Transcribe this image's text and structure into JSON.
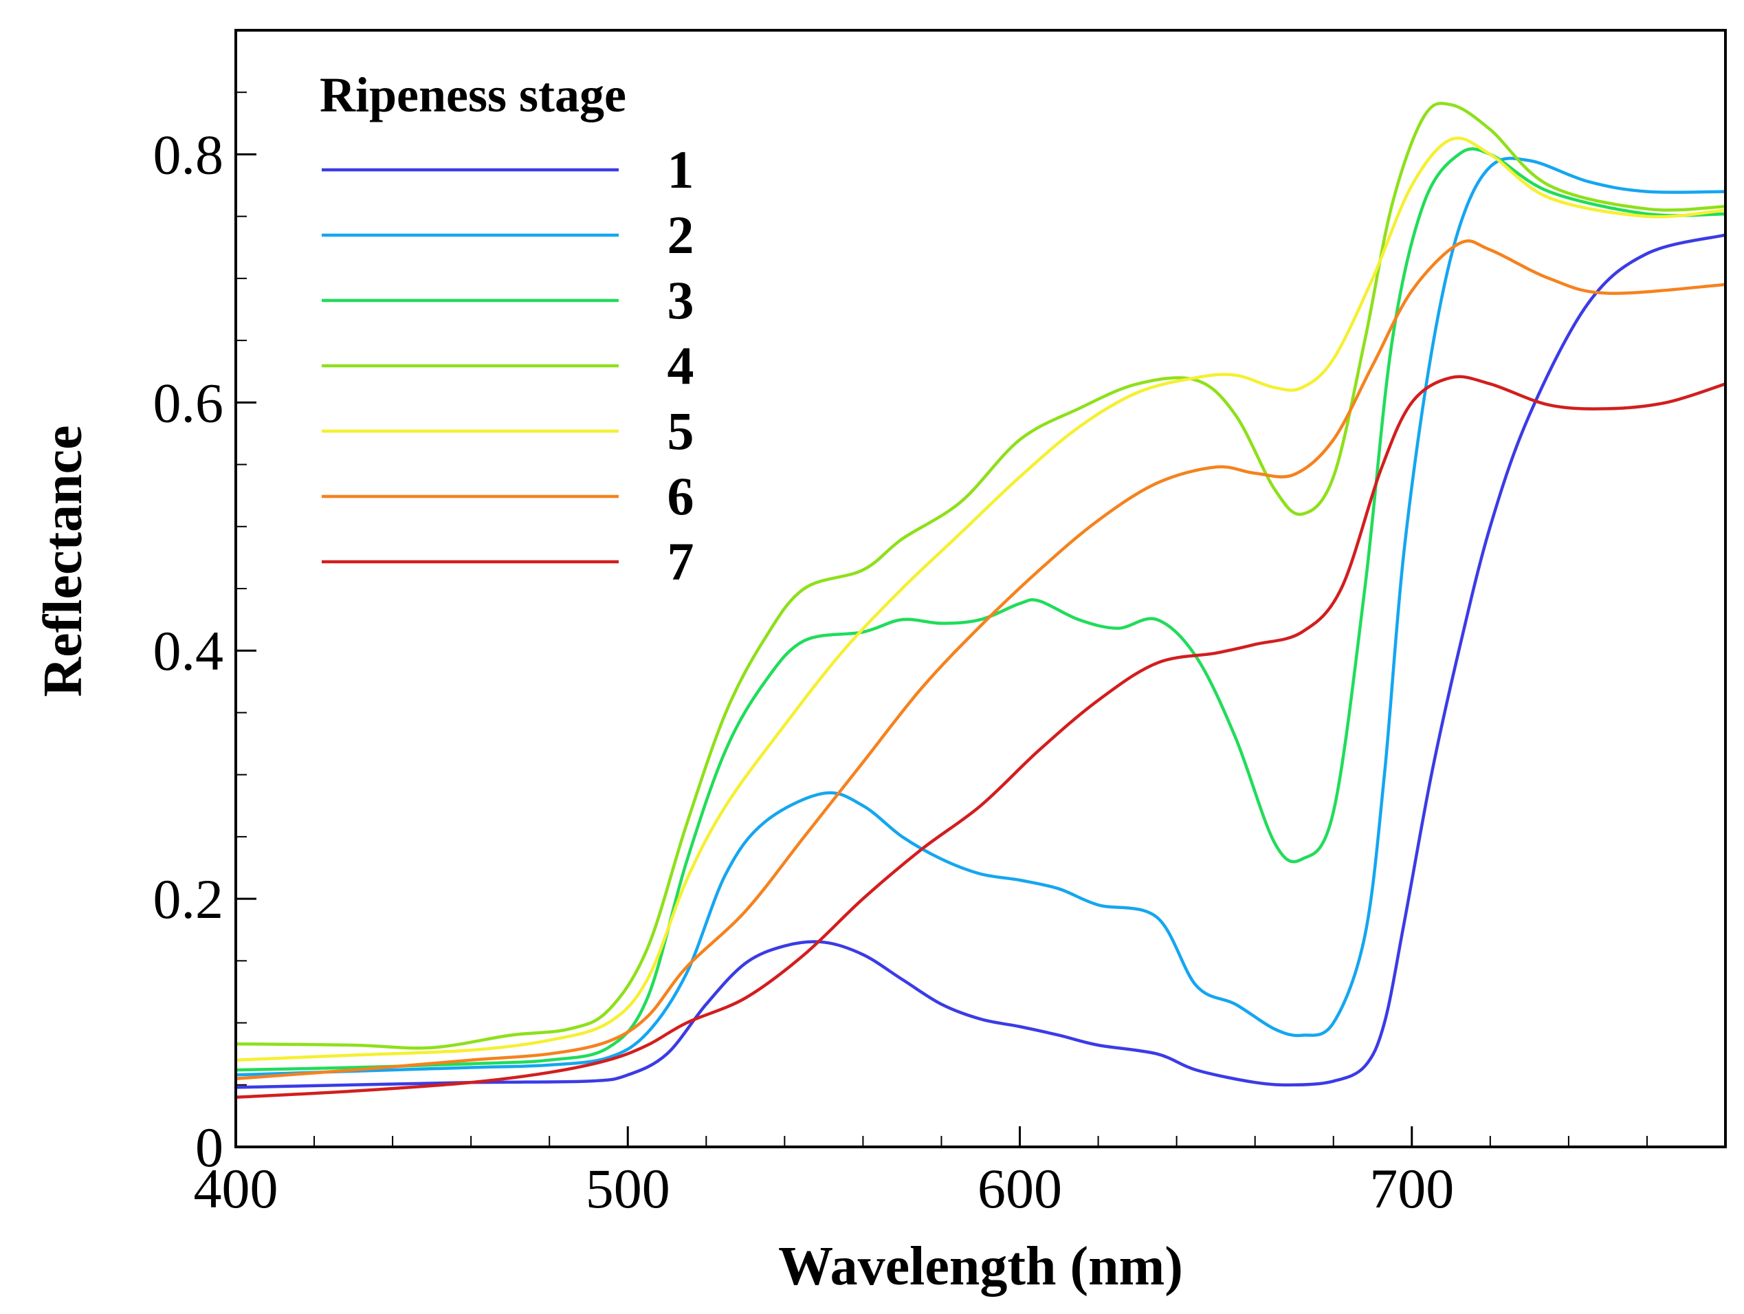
{
  "chart_data": {
    "type": "line",
    "title": "",
    "xlabel": "Wavelength (nm)",
    "ylabel": "Reflectance",
    "xlim": [
      400,
      780
    ],
    "ylim": [
      0,
      0.9
    ],
    "x_ticks": [
      400,
      500,
      600,
      700
    ],
    "x_tick_labels": [
      "400",
      "500",
      "600",
      "700"
    ],
    "x_minor_step": 20,
    "y_ticks": [
      0,
      0.2,
      0.4,
      0.6,
      0.8
    ],
    "y_tick_labels": [
      "0",
      "0.2",
      "0.4",
      "0.6",
      "0.8"
    ],
    "y_minor_step": 0.05,
    "grid": false,
    "legend": {
      "title": "Ripeness stage",
      "position": "top-left"
    },
    "series": [
      {
        "name": "1",
        "color": "#3b3be6",
        "points": [
          [
            400,
            0.048
          ],
          [
            430,
            0.05
          ],
          [
            460,
            0.052
          ],
          [
            490,
            0.053
          ],
          [
            500,
            0.058
          ],
          [
            510,
            0.075
          ],
          [
            520,
            0.115
          ],
          [
            530,
            0.148
          ],
          [
            540,
            0.162
          ],
          [
            550,
            0.165
          ],
          [
            560,
            0.155
          ],
          [
            570,
            0.135
          ],
          [
            580,
            0.115
          ],
          [
            590,
            0.103
          ],
          [
            600,
            0.097
          ],
          [
            610,
            0.09
          ],
          [
            620,
            0.082
          ],
          [
            635,
            0.075
          ],
          [
            645,
            0.062
          ],
          [
            660,
            0.052
          ],
          [
            670,
            0.05
          ],
          [
            680,
            0.053
          ],
          [
            688,
            0.065
          ],
          [
            693,
            0.1
          ],
          [
            698,
            0.18
          ],
          [
            705,
            0.3
          ],
          [
            712,
            0.4
          ],
          [
            720,
            0.5
          ],
          [
            730,
            0.59
          ],
          [
            745,
            0.68
          ],
          [
            760,
            0.72
          ],
          [
            780,
            0.735
          ]
        ]
      },
      {
        "name": "2",
        "color": "#14a6f0",
        "points": [
          [
            400,
            0.058
          ],
          [
            430,
            0.061
          ],
          [
            460,
            0.064
          ],
          [
            480,
            0.066
          ],
          [
            495,
            0.072
          ],
          [
            505,
            0.092
          ],
          [
            515,
            0.14
          ],
          [
            525,
            0.22
          ],
          [
            535,
            0.262
          ],
          [
            550,
            0.285
          ],
          [
            560,
            0.275
          ],
          [
            570,
            0.25
          ],
          [
            580,
            0.232
          ],
          [
            590,
            0.22
          ],
          [
            600,
            0.215
          ],
          [
            610,
            0.208
          ],
          [
            620,
            0.195
          ],
          [
            635,
            0.185
          ],
          [
            645,
            0.13
          ],
          [
            655,
            0.115
          ],
          [
            665,
            0.095
          ],
          [
            672,
            0.09
          ],
          [
            680,
            0.1
          ],
          [
            688,
            0.17
          ],
          [
            693,
            0.3
          ],
          [
            698,
            0.48
          ],
          [
            705,
            0.64
          ],
          [
            712,
            0.74
          ],
          [
            720,
            0.79
          ],
          [
            730,
            0.795
          ],
          [
            745,
            0.778
          ],
          [
            760,
            0.77
          ],
          [
            780,
            0.77
          ]
        ]
      },
      {
        "name": "3",
        "color": "#21dc5a",
        "points": [
          [
            400,
            0.062
          ],
          [
            430,
            0.064
          ],
          [
            460,
            0.067
          ],
          [
            480,
            0.07
          ],
          [
            495,
            0.08
          ],
          [
            505,
            0.12
          ],
          [
            515,
            0.23
          ],
          [
            525,
            0.32
          ],
          [
            535,
            0.375
          ],
          [
            545,
            0.408
          ],
          [
            560,
            0.415
          ],
          [
            570,
            0.425
          ],
          [
            580,
            0.422
          ],
          [
            590,
            0.425
          ],
          [
            600,
            0.438
          ],
          [
            605,
            0.44
          ],
          [
            615,
            0.425
          ],
          [
            625,
            0.418
          ],
          [
            635,
            0.425
          ],
          [
            645,
            0.395
          ],
          [
            655,
            0.33
          ],
          [
            665,
            0.245
          ],
          [
            672,
            0.232
          ],
          [
            680,
            0.27
          ],
          [
            688,
            0.45
          ],
          [
            695,
            0.65
          ],
          [
            703,
            0.76
          ],
          [
            712,
            0.8
          ],
          [
            720,
            0.8
          ],
          [
            735,
            0.77
          ],
          [
            760,
            0.752
          ],
          [
            780,
            0.752
          ]
        ]
      },
      {
        "name": "4",
        "color": "#8ee01a",
        "points": [
          [
            400,
            0.083
          ],
          [
            430,
            0.082
          ],
          [
            450,
            0.08
          ],
          [
            470,
            0.09
          ],
          [
            485,
            0.095
          ],
          [
            495,
            0.11
          ],
          [
            505,
            0.16
          ],
          [
            515,
            0.26
          ],
          [
            525,
            0.35
          ],
          [
            535,
            0.41
          ],
          [
            545,
            0.45
          ],
          [
            560,
            0.465
          ],
          [
            570,
            0.49
          ],
          [
            585,
            0.52
          ],
          [
            600,
            0.57
          ],
          [
            615,
            0.595
          ],
          [
            630,
            0.615
          ],
          [
            645,
            0.618
          ],
          [
            655,
            0.59
          ],
          [
            665,
            0.53
          ],
          [
            672,
            0.51
          ],
          [
            680,
            0.54
          ],
          [
            688,
            0.65
          ],
          [
            695,
            0.76
          ],
          [
            703,
            0.83
          ],
          [
            710,
            0.84
          ],
          [
            720,
            0.82
          ],
          [
            735,
            0.775
          ],
          [
            760,
            0.756
          ],
          [
            780,
            0.758
          ]
        ]
      },
      {
        "name": "5",
        "color": "#f5f032",
        "points": [
          [
            400,
            0.07
          ],
          [
            430,
            0.074
          ],
          [
            460,
            0.078
          ],
          [
            480,
            0.086
          ],
          [
            495,
            0.1
          ],
          [
            505,
            0.135
          ],
          [
            515,
            0.215
          ],
          [
            525,
            0.275
          ],
          [
            540,
            0.34
          ],
          [
            555,
            0.4
          ],
          [
            570,
            0.45
          ],
          [
            585,
            0.495
          ],
          [
            600,
            0.54
          ],
          [
            615,
            0.58
          ],
          [
            630,
            0.608
          ],
          [
            645,
            0.62
          ],
          [
            655,
            0.622
          ],
          [
            665,
            0.612
          ],
          [
            672,
            0.612
          ],
          [
            680,
            0.635
          ],
          [
            690,
            0.7
          ],
          [
            700,
            0.775
          ],
          [
            710,
            0.812
          ],
          [
            720,
            0.8
          ],
          [
            735,
            0.765
          ],
          [
            760,
            0.75
          ],
          [
            780,
            0.755
          ]
        ]
      },
      {
        "name": "6",
        "color": "#f5821e",
        "points": [
          [
            400,
            0.055
          ],
          [
            430,
            0.062
          ],
          [
            460,
            0.07
          ],
          [
            480,
            0.075
          ],
          [
            495,
            0.085
          ],
          [
            505,
            0.105
          ],
          [
            515,
            0.145
          ],
          [
            530,
            0.19
          ],
          [
            545,
            0.25
          ],
          [
            560,
            0.31
          ],
          [
            575,
            0.37
          ],
          [
            590,
            0.42
          ],
          [
            605,
            0.465
          ],
          [
            620,
            0.505
          ],
          [
            635,
            0.535
          ],
          [
            650,
            0.548
          ],
          [
            660,
            0.543
          ],
          [
            670,
            0.542
          ],
          [
            680,
            0.57
          ],
          [
            690,
            0.63
          ],
          [
            700,
            0.69
          ],
          [
            712,
            0.728
          ],
          [
            720,
            0.723
          ],
          [
            735,
            0.7
          ],
          [
            750,
            0.688
          ],
          [
            780,
            0.695
          ]
        ]
      },
      {
        "name": "7",
        "color": "#d21e1e",
        "points": [
          [
            400,
            0.04
          ],
          [
            430,
            0.045
          ],
          [
            460,
            0.052
          ],
          [
            480,
            0.06
          ],
          [
            495,
            0.07
          ],
          [
            505,
            0.082
          ],
          [
            515,
            0.1
          ],
          [
            530,
            0.12
          ],
          [
            545,
            0.155
          ],
          [
            560,
            0.2
          ],
          [
            575,
            0.24
          ],
          [
            590,
            0.275
          ],
          [
            605,
            0.32
          ],
          [
            620,
            0.36
          ],
          [
            635,
            0.39
          ],
          [
            650,
            0.398
          ],
          [
            660,
            0.405
          ],
          [
            672,
            0.415
          ],
          [
            682,
            0.45
          ],
          [
            692,
            0.545
          ],
          [
            700,
            0.6
          ],
          [
            710,
            0.62
          ],
          [
            720,
            0.615
          ],
          [
            735,
            0.598
          ],
          [
            750,
            0.595
          ],
          [
            765,
            0.6
          ],
          [
            780,
            0.615
          ]
        ]
      }
    ]
  }
}
